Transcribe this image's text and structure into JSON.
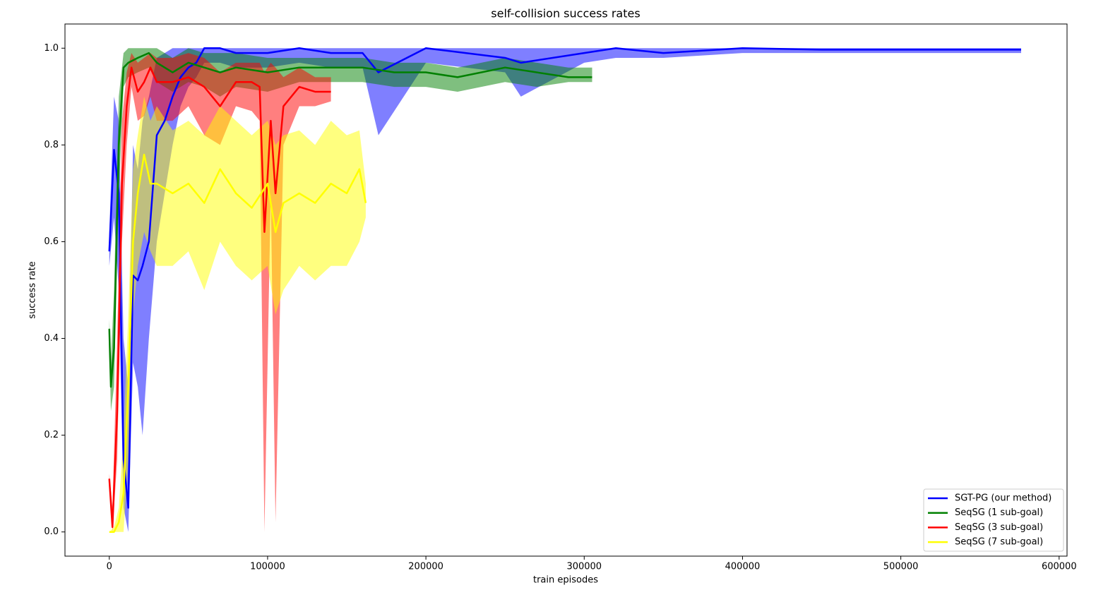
{
  "chart_data": {
    "type": "line",
    "title": "self-collision success rates",
    "x_label": "train episodes",
    "y_label": "success rate",
    "xlim": [
      -28000,
      605000
    ],
    "ylim": [
      -0.05,
      1.05
    ],
    "xticks": [
      0,
      100000,
      200000,
      300000,
      400000,
      500000,
      600000
    ],
    "yticks": [
      {
        "value": 0,
        "label": "0.0"
      },
      0.2,
      0.4,
      0.6,
      0.8,
      {
        "value": 1,
        "label": "1.0"
      }
    ],
    "legend": "lower right",
    "series": [
      {
        "name": "SGT-PG (our method)",
        "color": "#0000ff",
        "x": [
          0,
          3000,
          6000,
          9000,
          12000,
          15000,
          18000,
          21000,
          25000,
          30000,
          35000,
          40000,
          45000,
          50000,
          55000,
          60000,
          70000,
          80000,
          100000,
          120000,
          140000,
          160000,
          170000,
          200000,
          250000,
          260000,
          300000,
          320000,
          350000,
          400000,
          450000,
          500000,
          576000
        ],
        "values": [
          0.58,
          0.79,
          0.7,
          0.15,
          0.05,
          0.53,
          0.52,
          0.55,
          0.6,
          0.82,
          0.85,
          0.9,
          0.94,
          0.96,
          0.97,
          1.0,
          1.0,
          0.99,
          0.99,
          1.0,
          0.99,
          0.99,
          0.95,
          1.0,
          0.98,
          0.97,
          0.99,
          1.0,
          0.99,
          1.0,
          0.997,
          0.997,
          0.997
        ],
        "lower": [
          0.55,
          0.65,
          0.5,
          0.05,
          0.0,
          0.35,
          0.3,
          0.2,
          0.4,
          0.6,
          0.7,
          0.8,
          0.88,
          0.92,
          0.94,
          0.97,
          0.97,
          0.96,
          0.96,
          0.97,
          0.96,
          0.96,
          0.82,
          0.97,
          0.95,
          0.9,
          0.97,
          0.98,
          0.98,
          0.99,
          0.99,
          0.99,
          0.99
        ],
        "upper": [
          0.62,
          0.9,
          0.85,
          0.4,
          0.3,
          0.8,
          0.75,
          0.85,
          0.9,
          0.98,
          0.99,
          1.0,
          1.0,
          1.0,
          1.0,
          1.0,
          1.0,
          1.0,
          1.0,
          1.0,
          1.0,
          1.0,
          1.0,
          1.0,
          1.0,
          1.0,
          1.0,
          1.0,
          1.0,
          1.0,
          1.0,
          1.0,
          1.0
        ]
      },
      {
        "name": "SeqSG (1 sub-goal)",
        "color": "#008000",
        "x": [
          0,
          1000,
          3000,
          6000,
          9000,
          12000,
          18000,
          25000,
          30000,
          40000,
          50000,
          60000,
          70000,
          80000,
          100000,
          120000,
          140000,
          160000,
          180000,
          200000,
          220000,
          250000,
          270000,
          290000,
          305000
        ],
        "values": [
          0.42,
          0.3,
          0.38,
          0.8,
          0.96,
          0.97,
          0.98,
          0.99,
          0.97,
          0.95,
          0.97,
          0.96,
          0.95,
          0.96,
          0.95,
          0.96,
          0.96,
          0.96,
          0.95,
          0.95,
          0.94,
          0.96,
          0.95,
          0.94,
          0.94
        ],
        "lower": [
          0.4,
          0.25,
          0.3,
          0.7,
          0.92,
          0.94,
          0.95,
          0.96,
          0.93,
          0.91,
          0.93,
          0.92,
          0.9,
          0.92,
          0.91,
          0.93,
          0.93,
          0.93,
          0.92,
          0.92,
          0.91,
          0.93,
          0.92,
          0.93,
          0.93
        ],
        "upper": [
          0.44,
          0.35,
          0.5,
          0.9,
          0.99,
          1.0,
          1.0,
          1.0,
          1.0,
          0.98,
          1.0,
          0.99,
          0.99,
          0.99,
          0.98,
          0.98,
          0.98,
          0.98,
          0.97,
          0.97,
          0.96,
          0.98,
          0.97,
          0.96,
          0.96
        ]
      },
      {
        "name": "SeqSG (3 sub-goal)",
        "color": "#ff0000",
        "x": [
          0,
          2000,
          5000,
          8000,
          11000,
          14000,
          18000,
          22000,
          26000,
          30000,
          40000,
          50000,
          60000,
          70000,
          80000,
          90000,
          95000,
          98000,
          102000,
          105000,
          110000,
          120000,
          130000,
          140000
        ],
        "values": [
          0.11,
          0.01,
          0.25,
          0.72,
          0.88,
          0.96,
          0.91,
          0.93,
          0.96,
          0.93,
          0.93,
          0.94,
          0.92,
          0.88,
          0.93,
          0.93,
          0.92,
          0.62,
          0.85,
          0.7,
          0.88,
          0.92,
          0.91,
          0.91
        ],
        "lower": [
          0.1,
          0.0,
          0.15,
          0.6,
          0.8,
          0.92,
          0.85,
          0.86,
          0.9,
          0.85,
          0.85,
          0.88,
          0.82,
          0.8,
          0.88,
          0.87,
          0.85,
          0.0,
          0.7,
          0.02,
          0.8,
          0.88,
          0.88,
          0.89
        ],
        "upper": [
          0.12,
          0.05,
          0.4,
          0.85,
          0.95,
          0.99,
          0.97,
          0.98,
          0.99,
          0.98,
          0.98,
          0.99,
          0.98,
          0.95,
          0.97,
          0.97,
          0.97,
          0.95,
          0.97,
          0.96,
          0.94,
          0.96,
          0.94,
          0.94
        ]
      },
      {
        "name": "SeqSG (7 sub-goal)",
        "color": "#ffff00",
        "x": [
          0,
          3000,
          6000,
          9000,
          12000,
          15000,
          18000,
          22000,
          26000,
          30000,
          40000,
          50000,
          60000,
          70000,
          80000,
          90000,
          100000,
          105000,
          110000,
          120000,
          130000,
          140000,
          150000,
          158000,
          162000
        ],
        "values": [
          0.0,
          0.0,
          0.02,
          0.08,
          0.3,
          0.6,
          0.7,
          0.78,
          0.72,
          0.72,
          0.7,
          0.72,
          0.68,
          0.75,
          0.7,
          0.67,
          0.72,
          0.62,
          0.68,
          0.7,
          0.68,
          0.72,
          0.7,
          0.75,
          0.68
        ],
        "lower": [
          0.0,
          0.0,
          0.0,
          0.0,
          0.15,
          0.45,
          0.55,
          0.62,
          0.58,
          0.55,
          0.55,
          0.58,
          0.5,
          0.6,
          0.55,
          0.52,
          0.55,
          0.45,
          0.5,
          0.55,
          0.52,
          0.55,
          0.55,
          0.6,
          0.65
        ],
        "upper": [
          0.0,
          0.01,
          0.05,
          0.2,
          0.45,
          0.75,
          0.82,
          0.9,
          0.85,
          0.88,
          0.83,
          0.85,
          0.82,
          0.88,
          0.85,
          0.82,
          0.85,
          0.8,
          0.82,
          0.83,
          0.8,
          0.85,
          0.82,
          0.83,
          0.72
        ]
      }
    ]
  }
}
